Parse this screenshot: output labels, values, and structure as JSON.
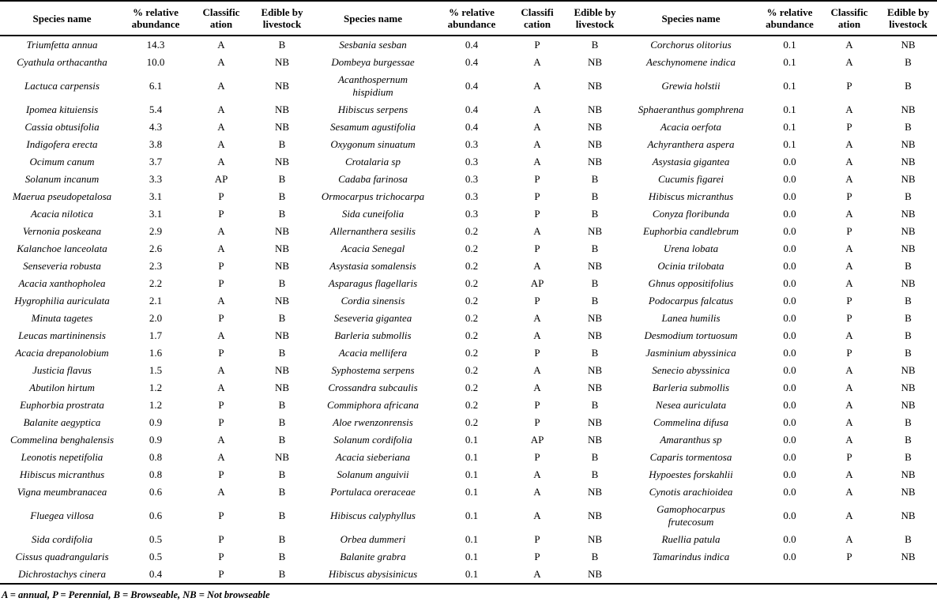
{
  "table": {
    "column_groups": [
      {
        "headers": [
          {
            "l1": "Species name"
          },
          {
            "l1": "% relative",
            "l2": "abundance"
          },
          {
            "l1": "Classific",
            "l2": "ation"
          },
          {
            "l1": "Edible by",
            "l2": "livestock"
          }
        ]
      },
      {
        "headers": [
          {
            "l1": "Species name"
          },
          {
            "l1": "% relative",
            "l2": "abundance"
          },
          {
            "l1": "Classifi",
            "l2": "cation"
          },
          {
            "l1": "Edible by",
            "l2": "livestock"
          }
        ]
      },
      {
        "headers": [
          {
            "l1": "Species name"
          },
          {
            "l1": "% relative",
            "l2": "abundance"
          },
          {
            "l1": "Classific",
            "l2": "ation"
          },
          {
            "l1": "Edible by",
            "l2": "livestock"
          }
        ]
      }
    ],
    "rows": [
      [
        [
          "Triumfetta annua",
          "14.3",
          "A",
          "B"
        ],
        [
          "Sesbania sesban",
          "0.4",
          "P",
          "B"
        ],
        [
          "Corchorus olitorius",
          "0.1",
          "A",
          "NB"
        ]
      ],
      [
        [
          "Cyathula orthacantha",
          "10.0",
          "A",
          "NB"
        ],
        [
          "Dombeya burgessae",
          "0.4",
          "A",
          "NB"
        ],
        [
          "Aeschynomene indica",
          "0.1",
          "A",
          "B"
        ]
      ],
      [
        [
          "Lactuca carpensis",
          "6.1",
          "A",
          "NB"
        ],
        [
          "Acanthospernum\nhispidium",
          "0.4",
          "A",
          "NB"
        ],
        [
          "Grewia holstii",
          "0.1",
          "P",
          "B"
        ]
      ],
      [
        [
          "Ipomea kituiensis",
          "5.4",
          "A",
          "NB"
        ],
        [
          "Hibiscus serpens",
          "0.4",
          "A",
          "NB"
        ],
        [
          "Sphaeranthus gomphrena",
          "0.1",
          "A",
          "NB"
        ]
      ],
      [
        [
          "Cassia obtusifolia",
          "4.3",
          "A",
          "NB"
        ],
        [
          "Sesamum agustifolia",
          "0.4",
          "A",
          "NB"
        ],
        [
          "Acacia oerfota",
          "0.1",
          "P",
          "B"
        ]
      ],
      [
        [
          "Indigofera erecta",
          "3.8",
          "A",
          "B"
        ],
        [
          "Oxygonum sinuatum",
          "0.3",
          "A",
          "NB"
        ],
        [
          "Achyranthera aspera",
          "0.1",
          "A",
          "NB"
        ]
      ],
      [
        [
          "Ocimum canum",
          "3.7",
          "A",
          "NB"
        ],
        [
          "Crotalaria sp",
          "0.3",
          "A",
          "NB"
        ],
        [
          "Asystasia gigantea",
          "0.0",
          "A",
          "NB"
        ]
      ],
      [
        [
          "Solanum incanum",
          "3.3",
          "AP",
          "B"
        ],
        [
          "Cadaba farinosa",
          "0.3",
          "P",
          "B"
        ],
        [
          "Cucumis figarei",
          "0.0",
          "A",
          "NB"
        ]
      ],
      [
        [
          "Maerua pseudopetalosa",
          "3.1",
          "P",
          "B"
        ],
        [
          "Ormocarpus trichocarpa",
          "0.3",
          "P",
          "B"
        ],
        [
          "Hibiscus micranthus",
          "0.0",
          "P",
          "B"
        ]
      ],
      [
        [
          "Acacia nilotica",
          "3.1",
          "P",
          "B"
        ],
        [
          "Sida cuneifolia",
          "0.3",
          "P",
          "B"
        ],
        [
          "Conyza floribunda",
          "0.0",
          "A",
          "NB"
        ]
      ],
      [
        [
          "Vernonia poskeana",
          "2.9",
          "A",
          "NB"
        ],
        [
          "Allernanthera sesilis",
          "0.2",
          "A",
          "NB"
        ],
        [
          "Euphorbia candlebrum",
          "0.0",
          "P",
          "NB"
        ]
      ],
      [
        [
          "Kalanchoe lanceolata",
          "2.6",
          "A",
          "NB"
        ],
        [
          "Acacia Senegal",
          "0.2",
          "P",
          "B"
        ],
        [
          "Urena lobata",
          "0.0",
          "A",
          "NB"
        ]
      ],
      [
        [
          "Senseveria robusta",
          "2.3",
          "P",
          "NB"
        ],
        [
          "Asystasia somalensis",
          "0.2",
          "A",
          "NB"
        ],
        [
          "Ocinia trilobata",
          "0.0",
          "A",
          "B"
        ]
      ],
      [
        [
          "Acacia xanthopholea",
          "2.2",
          "P",
          "B"
        ],
        [
          "Asparagus flagellaris",
          "0.2",
          "AP",
          "B"
        ],
        [
          "Ghnus oppositifolius",
          "0.0",
          "A",
          "NB"
        ]
      ],
      [
        [
          "Hygrophilia auriculata",
          "2.1",
          "A",
          "NB"
        ],
        [
          "Cordia sinensis",
          "0.2",
          "P",
          "B"
        ],
        [
          "Podocarpus falcatus",
          "0.0",
          "P",
          "B"
        ]
      ],
      [
        [
          "Minuta tagetes",
          "2.0",
          "P",
          "B"
        ],
        [
          "Seseveria gigantea",
          "0.2",
          "A",
          "NB"
        ],
        [
          "Lanea humilis",
          "0.0",
          "P",
          "B"
        ]
      ],
      [
        [
          "Leucas martininensis",
          "1.7",
          "A",
          "NB"
        ],
        [
          "Barleria submollis",
          "0.2",
          "A",
          "NB"
        ],
        [
          "Desmodium tortuosum",
          "0.0",
          "A",
          "B"
        ]
      ],
      [
        [
          "Acacia drepanolobium",
          "1.6",
          "P",
          "B"
        ],
        [
          "Acacia mellifera",
          "0.2",
          "P",
          "B"
        ],
        [
          "Jasminium abyssinica",
          "0.0",
          "P",
          "B"
        ]
      ],
      [
        [
          "Justicia flavus",
          "1.5",
          "A",
          "NB"
        ],
        [
          "Syphostema serpens",
          "0.2",
          "A",
          "NB"
        ],
        [
          "Senecio abyssinica",
          "0.0",
          "A",
          "NB"
        ]
      ],
      [
        [
          "Abutilon hirtum",
          "1.2",
          "A",
          "NB"
        ],
        [
          "Crossandra subcaulis",
          "0.2",
          "A",
          "NB"
        ],
        [
          "Barleria submollis",
          "0.0",
          "A",
          "NB"
        ]
      ],
      [
        [
          "Euphorbia prostrata",
          "1.2",
          "P",
          "B"
        ],
        [
          "Commiphora africana",
          "0.2",
          "P",
          "B"
        ],
        [
          "Nesea auriculata",
          "0.0",
          "A",
          "NB"
        ]
      ],
      [
        [
          "Balanite aegyptica",
          "0.9",
          "P",
          "B"
        ],
        [
          "Aloe rwenzonrensis",
          "0.2",
          "P",
          "NB"
        ],
        [
          "Commelina difusa",
          "0.0",
          "A",
          "B"
        ]
      ],
      [
        [
          "Commelina benghalensis",
          "0.9",
          "A",
          "B"
        ],
        [
          "Solanum cordifolia",
          "0.1",
          "AP",
          "NB"
        ],
        [
          "Amaranthus sp",
          "0.0",
          "A",
          "B"
        ]
      ],
      [
        [
          "Leonotis nepetifolia",
          "0.8",
          "A",
          "NB"
        ],
        [
          "Acacia sieberiana",
          "0.1",
          "P",
          "B"
        ],
        [
          "Caparis tormentosa",
          "0.0",
          "P",
          "B"
        ]
      ],
      [
        [
          "Hibiscus micranthus",
          "0.8",
          "P",
          "B"
        ],
        [
          "Solanum anguivii",
          "0.1",
          "A",
          "B"
        ],
        [
          "Hypoestes forskahlii",
          "0.0",
          "A",
          "NB"
        ]
      ],
      [
        [
          "Vigna meumbranacea",
          "0.6",
          "A",
          "B"
        ],
        [
          "Portulaca oreraceae",
          "0.1",
          "A",
          "NB"
        ],
        [
          "Cynotis arachioidea",
          "0.0",
          "A",
          "NB"
        ]
      ],
      [
        [
          "Fluegea villosa",
          "0.6",
          "P",
          "B"
        ],
        [
          "Hibiscus calyphyllus",
          "0.1",
          "A",
          "NB"
        ],
        [
          "Gamophocarpus\nfrutecosum",
          "0.0",
          "A",
          "NB"
        ]
      ],
      [
        [
          "Sida cordifolia",
          "0.5",
          "P",
          "B"
        ],
        [
          "Orbea dummeri",
          "0.1",
          "P",
          "NB"
        ],
        [
          "Ruellia patula",
          "0.0",
          "A",
          "B"
        ]
      ],
      [
        [
          "Cissus quadrangularis",
          "0.5",
          "P",
          "B"
        ],
        [
          "Balanite grabra",
          "0.1",
          "P",
          "B"
        ],
        [
          "Tamarindus indica",
          "0.0",
          "P",
          "NB"
        ]
      ],
      [
        [
          "Dichrostachys cinera",
          "0.4",
          "P",
          "B"
        ],
        [
          "Hibiscus abysisinicus",
          "0.1",
          "A",
          "NB"
        ],
        [
          "",
          "",
          "",
          ""
        ]
      ]
    ],
    "footnote": "A = annual, P = Perennial, B = Browseable, NB = Not browseable"
  }
}
